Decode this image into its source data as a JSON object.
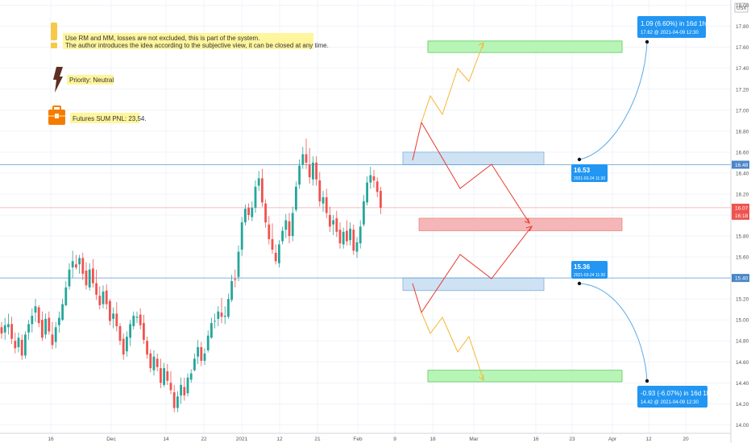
{
  "notes": {
    "disclaimer_line1": "Use RM and MM, losses are not excluded, this is part of the system.",
    "disclaimer_line2": "The author introduces the idea according to the subjective view, it can be closed at any time.",
    "priority": "Priority: Neutral",
    "futures_pnl": "Futures SUM PNL: 23,54."
  },
  "colors": {
    "up_candle": "#26a69a",
    "down_candle": "#ef5350",
    "level_line": "#5b9bd5",
    "price_line": "#f4a8a8",
    "blue_zone_fill": "#cfe2f3",
    "red_zone_fill": "#f4b6b6",
    "green_zone_fill": "#b7f5b7",
    "red_path": "#e83a2f",
    "orange_path": "#f7b733",
    "callout_bg": "#2196f3",
    "price_label_red": "#ef5350"
  },
  "chart_data": {
    "type": "candlestick",
    "currency": "USX",
    "y_ticks": [
      14.0,
      14.2,
      14.4,
      14.6,
      14.8,
      15.0,
      15.2,
      15.4,
      15.6,
      15.8,
      16.0,
      16.2,
      16.4,
      16.6,
      16.8,
      17.0,
      17.2,
      17.4,
      17.6,
      17.8,
      18.0
    ],
    "ylim": [
      13.98,
      18.02
    ],
    "x_ticks": [
      "16",
      "Dec",
      "14",
      "22",
      "2021",
      "12",
      "21",
      "Feb",
      "9",
      "18",
      "Mar",
      "16",
      "23",
      "Apr",
      "12",
      "20"
    ],
    "levels": [
      16.48,
      15.4
    ],
    "current_price": 16.07,
    "countdown": "16:18",
    "callouts": [
      {
        "value": "16.53",
        "date": "2021-03-24 11:30"
      },
      {
        "value": "15.36",
        "date": "2021-03-24 11:30"
      },
      {
        "headline": "1.09 (6.60%) in 16d 1h",
        "detail": "17.62 @ 2021-04-09  12:30"
      },
      {
        "headline": "-0.93 (-6.07%) in 16d 1h",
        "detail": "14.42 @ 2021-04-09  12:30"
      }
    ],
    "zones": [
      {
        "kind": "green",
        "y_low": 17.55,
        "y_high": 17.66
      },
      {
        "kind": "blue",
        "y_low": 16.48,
        "y_high": 16.6
      },
      {
        "kind": "red",
        "y_low": 15.85,
        "y_high": 15.97
      },
      {
        "kind": "blue",
        "y_low": 15.28,
        "y_high": 15.4
      },
      {
        "kind": "green",
        "y_low": 14.41,
        "y_high": 14.52
      }
    ],
    "candles": [
      [
        14.93,
        14.98,
        14.82,
        14.87
      ],
      [
        14.88,
        15.02,
        14.81,
        14.95
      ],
      [
        14.93,
        15.06,
        14.86,
        14.96
      ],
      [
        14.96,
        15.03,
        14.77,
        14.82
      ],
      [
        14.8,
        14.88,
        14.68,
        14.73
      ],
      [
        14.74,
        14.88,
        14.69,
        14.83
      ],
      [
        14.81,
        14.86,
        14.62,
        14.66
      ],
      [
        14.66,
        14.89,
        14.63,
        14.86
      ],
      [
        14.88,
        15.0,
        14.81,
        14.96
      ],
      [
        14.96,
        15.11,
        14.88,
        15.04
      ],
      [
        15.07,
        15.2,
        14.98,
        15.13
      ],
      [
        15.12,
        15.14,
        14.93,
        14.97
      ],
      [
        15.0,
        15.08,
        14.8,
        14.83
      ],
      [
        14.86,
        15.06,
        14.82,
        15.01
      ],
      [
        15.02,
        15.08,
        14.86,
        14.89
      ],
      [
        14.86,
        14.98,
        14.72,
        14.76
      ],
      [
        14.79,
        14.98,
        14.73,
        14.93
      ],
      [
        14.95,
        15.08,
        14.88,
        15.02
      ],
      [
        15.0,
        15.2,
        14.99,
        15.15
      ],
      [
        15.14,
        15.37,
        15.13,
        15.31
      ],
      [
        15.32,
        15.54,
        15.29,
        15.48
      ],
      [
        15.5,
        15.66,
        15.4,
        15.56
      ],
      [
        15.53,
        15.62,
        15.48,
        15.5
      ],
      [
        15.53,
        15.62,
        15.44,
        15.59
      ],
      [
        15.59,
        15.64,
        15.38,
        15.44
      ],
      [
        15.47,
        15.55,
        15.29,
        15.33
      ],
      [
        15.31,
        15.54,
        15.28,
        15.48
      ],
      [
        15.49,
        15.58,
        15.31,
        15.35
      ],
      [
        15.35,
        15.48,
        15.19,
        15.24
      ],
      [
        15.23,
        15.32,
        15.1,
        15.14
      ],
      [
        15.15,
        15.33,
        15.11,
        15.27
      ],
      [
        15.28,
        15.34,
        15.1,
        15.15
      ],
      [
        15.18,
        15.2,
        14.95,
        14.99
      ],
      [
        15.01,
        15.12,
        14.92,
        15.06
      ],
      [
        15.06,
        15.17,
        14.89,
        14.94
      ],
      [
        14.94,
        14.97,
        14.76,
        14.8
      ],
      [
        14.82,
        14.87,
        14.62,
        14.67
      ],
      [
        14.7,
        14.89,
        14.65,
        14.84
      ],
      [
        14.83,
        15.0,
        14.75,
        14.96
      ],
      [
        14.94,
        15.08,
        14.91,
        15.04
      ],
      [
        15.02,
        15.08,
        14.97,
        15.03
      ],
      [
        15.05,
        15.11,
        14.91,
        14.95
      ],
      [
        14.97,
        15.05,
        14.77,
        14.81
      ],
      [
        14.8,
        14.84,
        14.63,
        14.67
      ],
      [
        14.68,
        14.72,
        14.5,
        14.54
      ],
      [
        14.52,
        14.71,
        14.47,
        14.65
      ],
      [
        14.63,
        14.68,
        14.51,
        14.55
      ],
      [
        14.54,
        14.63,
        14.35,
        14.4
      ],
      [
        14.38,
        14.59,
        14.36,
        14.54
      ],
      [
        14.51,
        14.58,
        14.38,
        14.42
      ],
      [
        14.4,
        14.51,
        14.29,
        14.33
      ],
      [
        14.31,
        14.38,
        14.12,
        14.16
      ],
      [
        14.16,
        14.32,
        14.12,
        14.27
      ],
      [
        14.28,
        14.45,
        14.2,
        14.38
      ],
      [
        14.36,
        14.45,
        14.23,
        14.28
      ],
      [
        14.3,
        14.49,
        14.27,
        14.45
      ],
      [
        14.43,
        14.53,
        14.4,
        14.49
      ],
      [
        14.52,
        14.68,
        14.51,
        14.63
      ],
      [
        14.65,
        14.81,
        14.58,
        14.74
      ],
      [
        14.74,
        14.79,
        14.56,
        14.61
      ],
      [
        14.61,
        14.73,
        14.57,
        14.68
      ],
      [
        14.71,
        14.9,
        14.69,
        14.85
      ],
      [
        14.83,
        15.02,
        14.82,
        14.97
      ],
      [
        14.99,
        15.06,
        14.92,
        14.99
      ],
      [
        15.01,
        15.13,
        14.94,
        15.08
      ],
      [
        15.07,
        15.21,
        14.97,
        15.03
      ],
      [
        15.03,
        15.13,
        14.96,
        15.04
      ],
      [
        15.03,
        15.25,
        15.01,
        15.2
      ],
      [
        15.19,
        15.43,
        15.17,
        15.37
      ],
      [
        15.39,
        15.48,
        15.31,
        15.38
      ],
      [
        15.41,
        15.71,
        15.37,
        15.65
      ],
      [
        15.67,
        15.98,
        15.61,
        15.93
      ],
      [
        15.93,
        16.1,
        15.9,
        16.06
      ],
      [
        16.07,
        16.11,
        15.95,
        16.0
      ],
      [
        15.98,
        16.13,
        15.94,
        16.07
      ],
      [
        16.07,
        16.33,
        16.02,
        16.27
      ],
      [
        16.28,
        16.42,
        16.23,
        16.35
      ],
      [
        16.35,
        16.44,
        16.08,
        16.12
      ],
      [
        16.11,
        16.15,
        15.88,
        15.93
      ],
      [
        15.91,
        15.99,
        15.72,
        15.77
      ],
      [
        15.77,
        15.92,
        15.63,
        15.67
      ],
      [
        15.64,
        15.72,
        15.53,
        15.56
      ],
      [
        15.54,
        15.76,
        15.5,
        15.72
      ],
      [
        15.75,
        15.89,
        15.72,
        15.85
      ],
      [
        15.86,
        16.01,
        15.78,
        15.95
      ],
      [
        15.94,
        16.02,
        15.73,
        15.8
      ],
      [
        15.8,
        16.08,
        15.75,
        16.02
      ],
      [
        16.05,
        16.32,
        16.03,
        16.27
      ],
      [
        16.29,
        16.53,
        16.25,
        16.47
      ],
      [
        16.48,
        16.65,
        16.44,
        16.58
      ],
      [
        16.58,
        16.73,
        16.44,
        16.5
      ],
      [
        16.48,
        16.64,
        16.3,
        16.36
      ],
      [
        16.34,
        16.56,
        16.28,
        16.5
      ],
      [
        16.5,
        16.56,
        16.28,
        16.34
      ],
      [
        16.33,
        16.41,
        16.08,
        16.13
      ],
      [
        16.11,
        16.23,
        16.03,
        16.17
      ],
      [
        16.17,
        16.25,
        15.97,
        16.02
      ],
      [
        16.0,
        16.08,
        15.84,
        15.89
      ],
      [
        15.91,
        16.0,
        15.81,
        15.95
      ],
      [
        15.97,
        16.04,
        15.79,
        15.84
      ],
      [
        15.86,
        15.93,
        15.68,
        15.73
      ],
      [
        15.72,
        15.88,
        15.68,
        15.84
      ],
      [
        15.85,
        15.95,
        15.71,
        15.75
      ],
      [
        15.76,
        15.93,
        15.71,
        15.87
      ],
      [
        15.86,
        15.91,
        15.62,
        15.66
      ],
      [
        15.65,
        15.79,
        15.59,
        15.74
      ],
      [
        15.73,
        15.95,
        15.68,
        15.89
      ],
      [
        15.91,
        16.19,
        15.89,
        16.13
      ],
      [
        16.12,
        16.37,
        16.09,
        16.31
      ],
      [
        16.31,
        16.46,
        16.25,
        16.38
      ],
      [
        16.37,
        16.43,
        16.26,
        16.33
      ],
      [
        16.32,
        16.36,
        16.17,
        16.22
      ],
      [
        16.23,
        16.27,
        16.01,
        16.07
      ]
    ]
  }
}
